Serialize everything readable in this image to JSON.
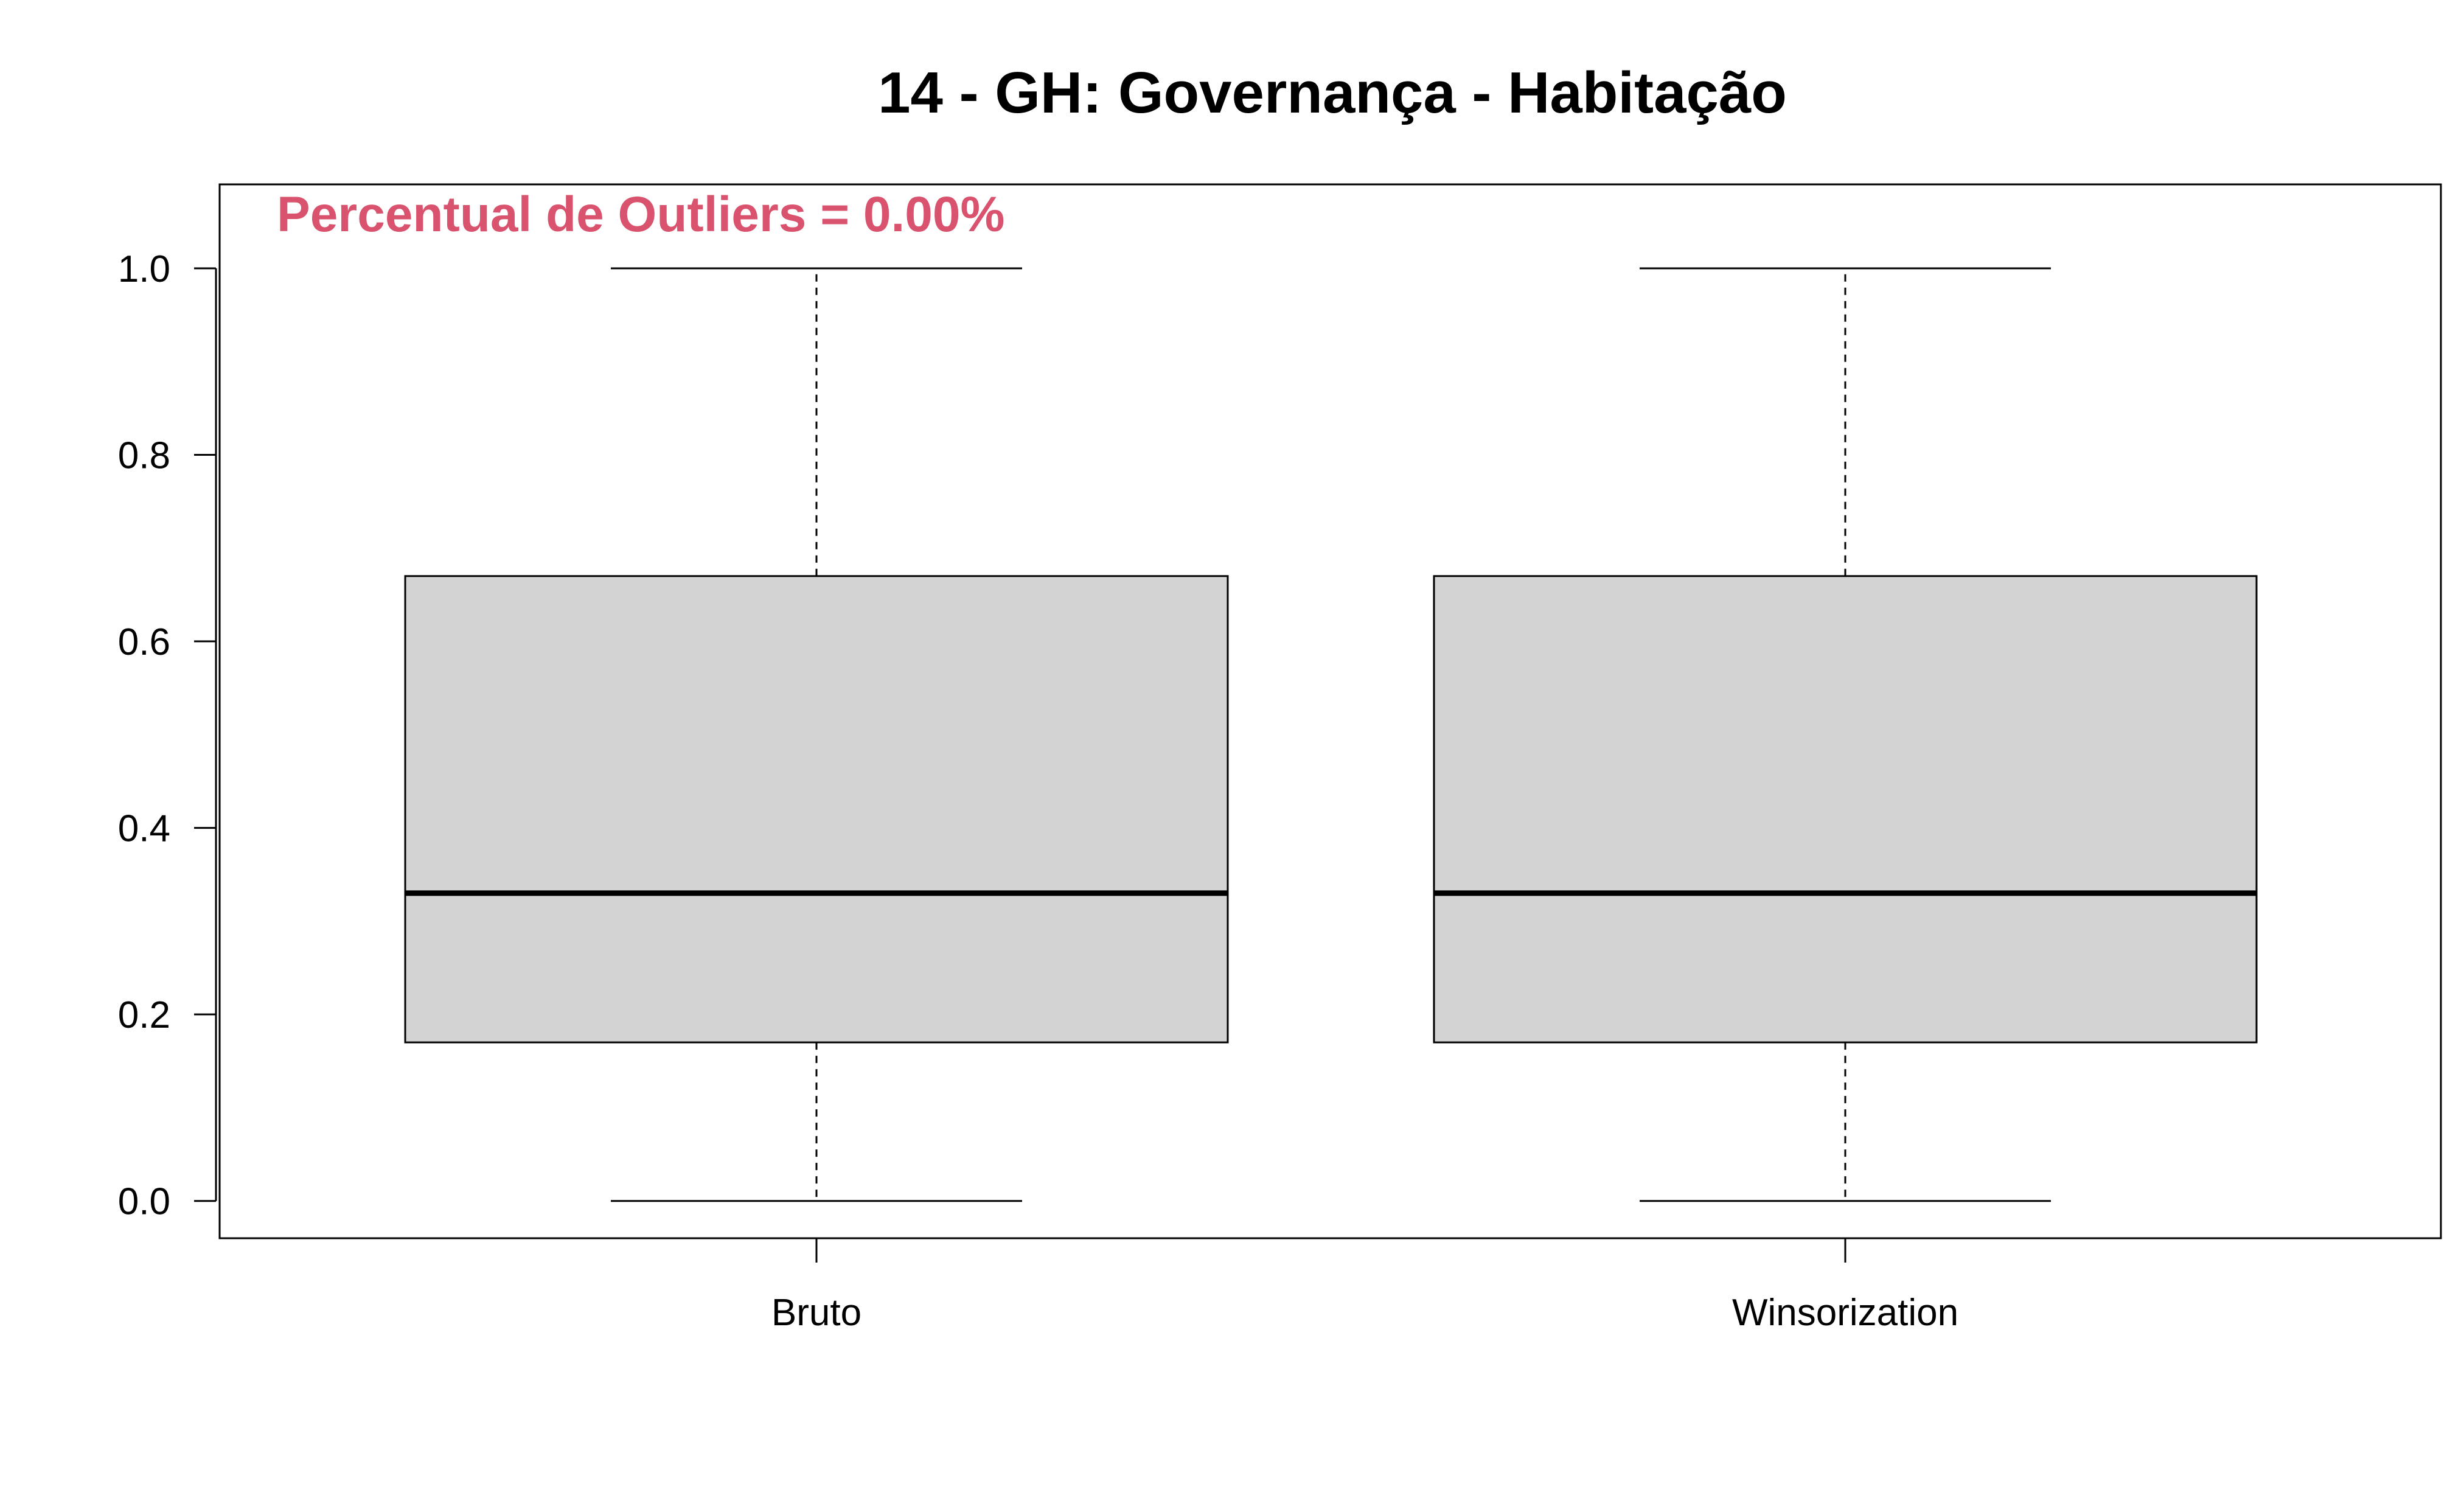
{
  "chart_data": {
    "type": "boxplot",
    "title": "14 - GH: Governança - Habitação",
    "annotation": "Percentual de Outliers = 0.00%",
    "annotation_color": "#d9536e",
    "categories": [
      "Bruto",
      "Winsorization"
    ],
    "boxes": [
      {
        "name": "Bruto",
        "min": 0.0,
        "q1": 0.17,
        "median": 0.33,
        "q3": 0.67,
        "max": 1.0
      },
      {
        "name": "Winsorization",
        "min": 0.0,
        "q1": 0.17,
        "median": 0.33,
        "q3": 0.67,
        "max": 1.0
      }
    ],
    "y_ticks": [
      "0.0",
      "0.2",
      "0.4",
      "0.6",
      "0.8",
      "1.0"
    ],
    "ylim": [
      -0.04,
      1.09
    ],
    "box_fill": "#d3d3d3",
    "line_color": "#000000",
    "grid": false
  }
}
